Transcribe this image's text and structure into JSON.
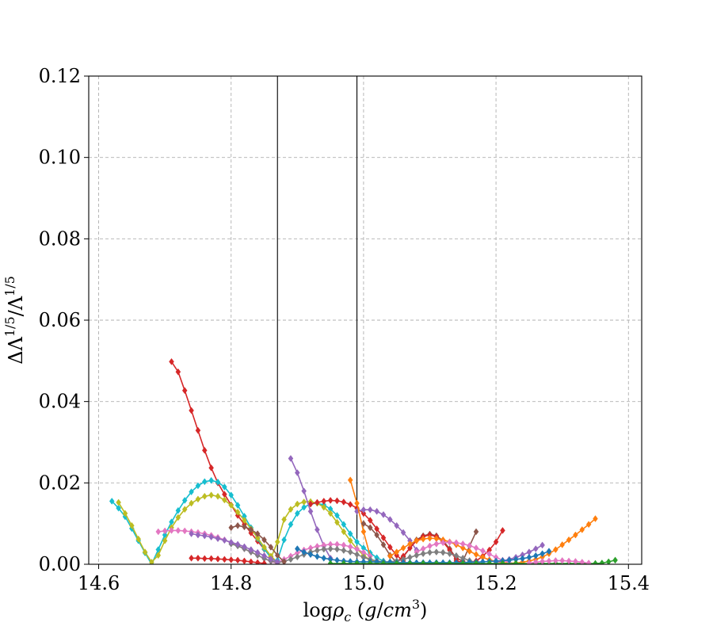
{
  "chart_data": {
    "type": "line",
    "marker": "diamond",
    "xlabel": "logρ_c (g/cm^3)",
    "ylabel": "ΔΛ^{1/5}/Λ^{1/5}",
    "xlim": [
      14.585,
      15.42
    ],
    "ylim": [
      0.0,
      0.12
    ],
    "x_ticks": [
      14.6,
      14.8,
      15.0,
      15.2,
      15.4
    ],
    "x_tick_labels": [
      "14.6",
      "14.8",
      "15.0",
      "15.2",
      "15.4"
    ],
    "y_ticks": [
      0.0,
      0.02,
      0.04,
      0.06,
      0.08,
      0.1,
      0.12
    ],
    "y_tick_labels": [
      "0.00",
      "0.02",
      "0.04",
      "0.06",
      "0.08",
      "0.10",
      "0.12"
    ],
    "grid": true,
    "vlines": [
      14.87,
      14.99
    ],
    "colors": {
      "blue": "#1f77b4",
      "orange": "#ff7f0e",
      "green": "#2ca02c",
      "red": "#d62728",
      "purple": "#9467bd",
      "brown": "#8c564b",
      "pink": "#e377c2",
      "gray": "#7f7f7f",
      "olive": "#bcbd22",
      "cyan": "#17becf"
    },
    "series": [
      {
        "color": "#d62728",
        "x": [
          14.71,
          14.72,
          14.73,
          14.74,
          14.75,
          14.76,
          14.77,
          14.78,
          14.79,
          14.8,
          14.81,
          14.82,
          14.83,
          14.84,
          14.85,
          14.86,
          14.87
        ],
        "y": [
          0.0498,
          0.0473,
          0.0427,
          0.0378,
          0.0329,
          0.028,
          0.0237,
          0.02,
          0.0172,
          0.0146,
          0.012,
          0.0098,
          0.0077,
          0.0057,
          0.0037,
          0.0018,
          0.0004
        ]
      },
      {
        "color": "#17becf",
        "x": [
          14.62,
          14.63,
          14.64,
          14.65,
          14.66,
          14.67,
          14.68,
          14.69,
          14.7,
          14.71,
          14.72,
          14.73,
          14.74,
          14.75,
          14.76,
          14.77,
          14.78,
          14.79,
          14.8,
          14.81,
          14.82,
          14.83,
          14.84,
          14.85,
          14.86,
          14.87
        ],
        "y": [
          0.0155,
          0.0138,
          0.0117,
          0.0088,
          0.0058,
          0.0028,
          0.0,
          0.0036,
          0.0072,
          0.0104,
          0.0132,
          0.0157,
          0.0178,
          0.0193,
          0.0203,
          0.0206,
          0.0202,
          0.019,
          0.017,
          0.0145,
          0.0118,
          0.009,
          0.0063,
          0.0038,
          0.0016,
          0.0005
        ]
      },
      {
        "color": "#bcbd22",
        "x": [
          14.63,
          14.64,
          14.65,
          14.66,
          14.67,
          14.68,
          14.69,
          14.7,
          14.71,
          14.72,
          14.73,
          14.74,
          14.75,
          14.76,
          14.77,
          14.78,
          14.79,
          14.8,
          14.81,
          14.82,
          14.83,
          14.84,
          14.85,
          14.86,
          14.87
        ],
        "y": [
          0.0152,
          0.0125,
          0.0095,
          0.0062,
          0.003,
          0.0005,
          0.0022,
          0.0058,
          0.009,
          0.0115,
          0.0135,
          0.015,
          0.016,
          0.0167,
          0.017,
          0.0167,
          0.0158,
          0.0145,
          0.0128,
          0.0108,
          0.0087,
          0.0065,
          0.0042,
          0.002,
          0.0005
        ]
      },
      {
        "color": "#17becf",
        "x": [
          14.87,
          14.88,
          14.89,
          14.9,
          14.91,
          14.92,
          14.93,
          14.94,
          14.95,
          14.96,
          14.97,
          14.98,
          14.99,
          15.0,
          15.01,
          15.02,
          15.03
        ],
        "y": [
          0.001,
          0.006,
          0.0098,
          0.0125,
          0.014,
          0.0148,
          0.015,
          0.0146,
          0.0136,
          0.012,
          0.0098,
          0.0075,
          0.0055,
          0.004,
          0.0028,
          0.0016,
          0.0008
        ]
      },
      {
        "color": "#bcbd22",
        "x": [
          14.86,
          14.87,
          14.88,
          14.89,
          14.9,
          14.91,
          14.92,
          14.93,
          14.94,
          14.95,
          14.96,
          14.97,
          14.98,
          14.99,
          15.0,
          15.01,
          15.02
        ],
        "y": [
          0.0015,
          0.0055,
          0.011,
          0.0135,
          0.0148,
          0.0153,
          0.0154,
          0.015,
          0.014,
          0.0125,
          0.0103,
          0.008,
          0.0058,
          0.0038,
          0.0022,
          0.001,
          0.0004
        ]
      },
      {
        "color": "#d62728",
        "x": [
          14.92,
          14.93,
          14.94,
          14.95,
          14.96,
          14.97,
          14.98,
          14.99,
          15.0,
          15.01,
          15.02,
          15.03,
          15.04,
          15.05,
          15.06
        ],
        "y": [
          0.0148,
          0.0152,
          0.0155,
          0.0157,
          0.0156,
          0.0153,
          0.0147,
          0.0138,
          0.0125,
          0.0108,
          0.0087,
          0.0065,
          0.0042,
          0.0022,
          0.0008
        ]
      },
      {
        "color": "#9467bd",
        "x": [
          14.89,
          14.9,
          14.91,
          14.92,
          14.93,
          14.94,
          14.95
        ],
        "y": [
          0.026,
          0.0225,
          0.018,
          0.013,
          0.0085,
          0.0045,
          0.0015
        ]
      },
      {
        "color": "#9467bd",
        "x": [
          14.99,
          15.0,
          15.01,
          15.02,
          15.03,
          15.04,
          15.05,
          15.06,
          15.07,
          15.08
        ],
        "y": [
          0.013,
          0.0134,
          0.0134,
          0.013,
          0.0122,
          0.011,
          0.0095,
          0.0078,
          0.0058,
          0.0035
        ]
      },
      {
        "color": "#ff7f0e",
        "x": [
          14.98,
          14.99,
          15.0,
          15.01
        ],
        "y": [
          0.0207,
          0.015,
          0.008,
          0.002
        ]
      },
      {
        "color": "#8c564b",
        "x": [
          15.0,
          15.01,
          15.02,
          15.03,
          15.04,
          15.05,
          15.06,
          15.07,
          15.08,
          15.09,
          15.1,
          15.11,
          15.12,
          15.13,
          15.14,
          15.15,
          15.16,
          15.17
        ],
        "y": [
          0.01,
          0.009,
          0.0072,
          0.0048,
          0.0022,
          0.0004,
          0.0018,
          0.004,
          0.006,
          0.007,
          0.0074,
          0.007,
          0.0058,
          0.0038,
          0.0015,
          0.0008,
          0.0045,
          0.008
        ]
      },
      {
        "color": "#d62728",
        "x": [
          15.05,
          15.06,
          15.07,
          15.08,
          15.09,
          15.1,
          15.11,
          15.12,
          15.13,
          15.14
        ],
        "y": [
          0.0005,
          0.002,
          0.004,
          0.0058,
          0.0068,
          0.0072,
          0.0068,
          0.0055,
          0.0035,
          0.0012
        ]
      },
      {
        "color": "#d62728",
        "x": [
          15.14,
          15.15,
          15.16,
          15.17,
          15.18,
          15.19,
          15.2,
          15.21
        ],
        "y": [
          0.0008,
          0.0005,
          0.0004,
          0.0008,
          0.002,
          0.0035,
          0.0055,
          0.0083
        ]
      },
      {
        "color": "#ff7f0e",
        "x": [
          15.04,
          15.05,
          15.06,
          15.07,
          15.08,
          15.09,
          15.1,
          15.11,
          15.12,
          15.13,
          15.14,
          15.15,
          15.16,
          15.17,
          15.18,
          15.19,
          15.2,
          15.21,
          15.22,
          15.23,
          15.24,
          15.25,
          15.26,
          15.27,
          15.28,
          15.29,
          15.3,
          15.31,
          15.32,
          15.33,
          15.34,
          15.35
        ],
        "y": [
          0.002,
          0.003,
          0.004,
          0.005,
          0.0058,
          0.0062,
          0.0064,
          0.0063,
          0.006,
          0.0055,
          0.0048,
          0.004,
          0.0032,
          0.0024,
          0.0017,
          0.0011,
          0.0007,
          0.0004,
          0.0003,
          0.0003,
          0.0005,
          0.0008,
          0.0012,
          0.0018,
          0.0026,
          0.0036,
          0.0048,
          0.006,
          0.0072,
          0.0085,
          0.0098,
          0.0112
        ]
      },
      {
        "color": "#e377c2",
        "x": [
          14.69,
          14.7,
          14.71,
          14.72,
          14.73,
          14.74,
          14.75,
          14.76,
          14.77,
          14.78,
          14.79,
          14.8,
          14.81,
          14.82,
          14.83,
          14.84,
          14.85,
          14.86,
          14.87
        ],
        "y": [
          0.008,
          0.0082,
          0.0083,
          0.0083,
          0.0082,
          0.008,
          0.0078,
          0.0075,
          0.0071,
          0.0066,
          0.006,
          0.0053,
          0.0046,
          0.0038,
          0.003,
          0.0022,
          0.0014,
          0.0007,
          0.0002
        ]
      },
      {
        "color": "#e377c2",
        "x": [
          14.87,
          14.88,
          14.89,
          14.9,
          14.91,
          14.92,
          14.93,
          14.94,
          14.95,
          14.96,
          14.97,
          14.98,
          14.99,
          15.0,
          15.01
        ],
        "y": [
          0.0004,
          0.0012,
          0.002,
          0.0028,
          0.0035,
          0.004,
          0.0044,
          0.0047,
          0.0049,
          0.0049,
          0.0047,
          0.0043,
          0.0037,
          0.0029,
          0.002
        ]
      },
      {
        "color": "#e377c2",
        "x": [
          15.08,
          15.09,
          15.1,
          15.11,
          15.12,
          15.13,
          15.14,
          15.15,
          15.16,
          15.17,
          15.18,
          15.19,
          15.2,
          15.21,
          15.22
        ],
        "y": [
          0.003,
          0.0038,
          0.0045,
          0.005,
          0.0053,
          0.0054,
          0.0053,
          0.005,
          0.0046,
          0.004,
          0.0033,
          0.0025,
          0.0017,
          0.001,
          0.0004
        ]
      },
      {
        "color": "#7f7f7f",
        "x": [
          14.8,
          14.81,
          14.82,
          14.83,
          14.84,
          14.85,
          14.86,
          14.87,
          14.88,
          14.89,
          14.9,
          14.91,
          14.92,
          14.93,
          14.94,
          14.95,
          14.96,
          14.97,
          14.98,
          14.99,
          15.0
        ],
        "y": [
          0.005,
          0.0045,
          0.0038,
          0.003,
          0.0022,
          0.0014,
          0.0008,
          0.0004,
          0.0007,
          0.0012,
          0.0018,
          0.0024,
          0.003,
          0.0034,
          0.0037,
          0.0038,
          0.0037,
          0.0034,
          0.003,
          0.0024,
          0.0017
        ]
      },
      {
        "color": "#7f7f7f",
        "x": [
          15.0,
          15.01,
          15.02,
          15.03,
          15.04,
          15.05,
          15.06,
          15.07,
          15.08,
          15.09,
          15.1,
          15.11,
          15.12,
          15.13,
          15.14,
          15.15,
          15.16,
          15.17,
          15.18
        ],
        "y": [
          0.0017,
          0.0012,
          0.0008,
          0.0006,
          0.0006,
          0.0008,
          0.0012,
          0.0017,
          0.0022,
          0.0026,
          0.0029,
          0.003,
          0.0029,
          0.0026,
          0.0021,
          0.0015,
          0.0009,
          0.0004,
          0.0001
        ]
      },
      {
        "color": "#9467bd",
        "x": [
          14.74,
          14.75,
          14.76,
          14.77,
          14.78,
          14.79,
          14.8,
          14.81,
          14.82,
          14.83,
          14.84,
          14.85,
          14.86,
          14.87
        ],
        "y": [
          0.0075,
          0.0072,
          0.007,
          0.0067,
          0.0063,
          0.0059,
          0.0054,
          0.0049,
          0.0043,
          0.0036,
          0.0029,
          0.0021,
          0.0013,
          0.0006
        ]
      },
      {
        "color": "#9467bd",
        "x": [
          15.2,
          15.21,
          15.22,
          15.23,
          15.24,
          15.25,
          15.26,
          15.27
        ],
        "y": [
          0.0005,
          0.0008,
          0.0012,
          0.0017,
          0.0023,
          0.003,
          0.0038,
          0.0047
        ]
      },
      {
        "color": "#8c564b",
        "x": [
          14.8,
          14.81,
          14.82,
          14.83,
          14.84,
          14.85,
          14.86,
          14.87,
          14.88
        ],
        "y": [
          0.009,
          0.0095,
          0.0092,
          0.0085,
          0.0075,
          0.006,
          0.0042,
          0.0022,
          0.0006
        ]
      },
      {
        "color": "#1f77b4",
        "x": [
          14.9,
          14.91,
          14.92,
          14.93,
          14.94,
          14.95,
          14.96,
          14.97,
          14.98,
          14.99,
          15.0,
          15.01,
          15.02,
          15.03,
          15.04,
          15.05,
          15.06,
          15.07,
          15.08,
          15.09,
          15.1,
          15.11,
          15.12,
          15.13,
          15.14,
          15.15,
          15.16,
          15.17,
          15.18,
          15.19,
          15.2,
          15.21,
          15.22,
          15.23,
          15.24,
          15.25,
          15.26,
          15.27,
          15.28
        ],
        "y": [
          0.0038,
          0.003,
          0.0024,
          0.0019,
          0.0015,
          0.0012,
          0.001,
          0.0008,
          0.0007,
          0.0006,
          0.0006,
          0.0006,
          0.0006,
          0.0005,
          0.0005,
          0.0004,
          0.0004,
          0.0004,
          0.0004,
          0.0004,
          0.0004,
          0.0004,
          0.0004,
          0.0004,
          0.0004,
          0.0004,
          0.0005,
          0.0005,
          0.0006,
          0.0007,
          0.0008,
          0.0009,
          0.001,
          0.0012,
          0.0014,
          0.0017,
          0.0021,
          0.0026,
          0.0032
        ]
      },
      {
        "color": "#d62728",
        "x": [
          14.74,
          14.75,
          14.76,
          14.77,
          14.78,
          14.79,
          14.8,
          14.81,
          14.82,
          14.83,
          14.84,
          14.85
        ],
        "y": [
          0.0015,
          0.0015,
          0.0014,
          0.0014,
          0.0013,
          0.0012,
          0.0011,
          0.001,
          0.0008,
          0.0006,
          0.0004,
          0.0002
        ]
      },
      {
        "color": "#2ca02c",
        "x": [
          14.95,
          14.97,
          14.99,
          15.01,
          15.03,
          15.05,
          15.07,
          15.09,
          15.11,
          15.13,
          15.15,
          15.17,
          15.19,
          15.21,
          15.23,
          15.25,
          15.27,
          15.29,
          15.31,
          15.33,
          15.35,
          15.36,
          15.37,
          15.38
        ],
        "y": [
          0.0002,
          0.0002,
          0.0002,
          0.0002,
          0.0002,
          0.0002,
          0.0002,
          0.0002,
          0.0002,
          0.0002,
          0.0002,
          0.0002,
          0.0002,
          0.0002,
          0.0002,
          0.0002,
          0.0002,
          0.0002,
          0.0002,
          0.0002,
          0.0002,
          0.0003,
          0.0006,
          0.001
        ]
      },
      {
        "color": "#e377c2",
        "x": [
          15.25,
          15.26,
          15.27,
          15.28,
          15.29,
          15.3,
          15.31,
          15.32,
          15.33,
          15.34
        ],
        "y": [
          0.0003,
          0.0005,
          0.0007,
          0.0008,
          0.0009,
          0.0009,
          0.0008,
          0.0007,
          0.0005,
          0.0003
        ]
      }
    ]
  }
}
